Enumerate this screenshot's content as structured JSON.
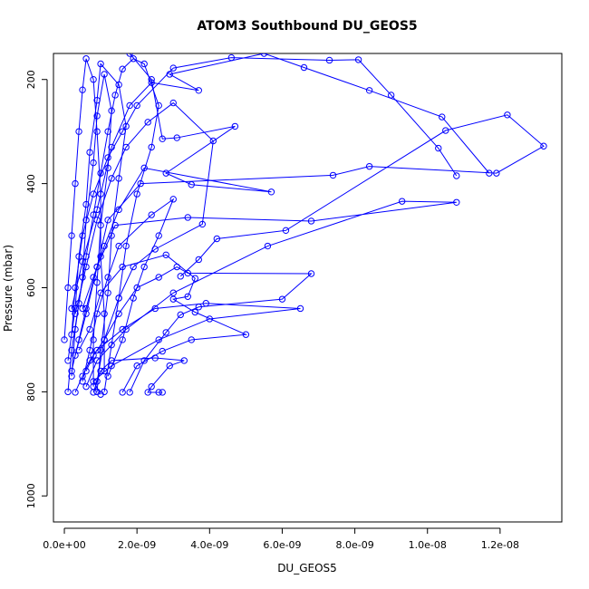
{
  "chart_data": {
    "type": "line",
    "title": "ATOM3 Southbound DU_GEOS5",
    "xlabel": "DU_GEOS5",
    "ylabel": "Pressure (mbar)",
    "xlim": [
      -3e-10,
      1.37e-08
    ],
    "ylim": [
      1050,
      150
    ],
    "y_inverted": true,
    "x_ticks": [
      {
        "value": 0,
        "label": "0.0e+00"
      },
      {
        "value": 2e-09,
        "label": "2.0e-09"
      },
      {
        "value": 4e-09,
        "label": "4.0e-09"
      },
      {
        "value": 6e-09,
        "label": "6.0e-09"
      },
      {
        "value": 8e-09,
        "label": "8.0e-09"
      },
      {
        "value": 1e-08,
        "label": "1.0e-08"
      },
      {
        "value": 1.2e-08,
        "label": "1.2e-08"
      }
    ],
    "y_ticks": [
      {
        "value": 200,
        "label": "200"
      },
      {
        "value": 400,
        "label": "400"
      },
      {
        "value": 600,
        "label": "600"
      },
      {
        "value": 800,
        "label": "800"
      },
      {
        "value": 1000,
        "label": "1000"
      }
    ],
    "grid": false,
    "legend": "none",
    "series_color": "#0000ff",
    "series": [
      {
        "points": [
          [
            3e-10,
            801
          ],
          [
            5e-10,
            770
          ],
          [
            7e-10,
            740
          ],
          [
            9e-10,
            720
          ],
          [
            1.6e-09,
            680
          ],
          [
            2.5e-09,
            640
          ],
          [
            3.9e-09,
            630
          ],
          [
            6.5e-09,
            640
          ],
          [
            4e-09,
            660
          ],
          [
            2.6e-09,
            700
          ],
          [
            1.3e-09,
            750
          ],
          [
            8e-10,
            780
          ],
          [
            1e-09,
            805
          ]
        ]
      },
      {
        "points": [
          [
            2e-10,
            760
          ],
          [
            4e-10,
            700
          ],
          [
            6e-10,
            640
          ],
          [
            9e-10,
            560
          ],
          [
            1.4e-09,
            480
          ],
          [
            3.4e-09,
            465
          ],
          [
            6.8e-09,
            472
          ],
          [
            1.08e-08,
            436
          ],
          [
            9.3e-09,
            434
          ],
          [
            5.6e-09,
            520
          ],
          [
            3e-09,
            610
          ],
          [
            1.7e-09,
            680
          ],
          [
            9e-10,
            740
          ],
          [
            6e-10,
            790
          ]
        ]
      },
      {
        "points": [
          [
            3e-10,
            730
          ],
          [
            6e-10,
            650
          ],
          [
            9e-10,
            560
          ],
          [
            1.2e-09,
            470
          ],
          [
            2.1e-09,
            400
          ],
          [
            7.4e-09,
            384
          ],
          [
            8.4e-09,
            367
          ],
          [
            1.19e-08,
            380
          ],
          [
            1.32e-08,
            328
          ],
          [
            1.22e-08,
            268
          ],
          [
            1.05e-08,
            298
          ],
          [
            6.1e-09,
            490
          ],
          [
            4.2e-09,
            506
          ],
          [
            3.7e-09,
            546
          ],
          [
            3.2e-09,
            578
          ]
        ]
      },
      {
        "points": [
          [
            5e-10,
            640
          ],
          [
            8e-10,
            580
          ],
          [
            1.1e-09,
            520
          ],
          [
            1.5e-09,
            450
          ],
          [
            2.2e-09,
            370
          ],
          [
            5.7e-09,
            416
          ],
          [
            3.5e-09,
            402
          ],
          [
            2.8e-09,
            380
          ],
          [
            4.7e-09,
            290
          ],
          [
            3.1e-09,
            312
          ],
          [
            2.7e-09,
            314
          ],
          [
            2.4e-09,
            200
          ],
          [
            1.8e-09,
            150
          ]
        ]
      },
      {
        "points": [
          [
            2e-10,
            640
          ],
          [
            5e-10,
            550
          ],
          [
            9e-10,
            450
          ],
          [
            1.3e-09,
            330
          ],
          [
            1.8e-09,
            250
          ],
          [
            2.4e-09,
            206
          ],
          [
            3.7e-09,
            221
          ],
          [
            2.9e-09,
            190
          ],
          [
            5.5e-09,
            150
          ],
          [
            6.6e-09,
            177
          ],
          [
            8.4e-09,
            221
          ],
          [
            1.04e-08,
            272
          ],
          [
            1.17e-08,
            380
          ]
        ]
      },
      {
        "points": [
          [
            4e-10,
            720
          ],
          [
            7e-10,
            680
          ],
          [
            1e-09,
            610
          ],
          [
            1.6e-09,
            560
          ],
          [
            2.8e-09,
            537
          ],
          [
            3.6e-09,
            582
          ],
          [
            3.4e-09,
            617
          ],
          [
            3e-09,
            622
          ],
          [
            3.6e-09,
            647
          ],
          [
            5e-09,
            690
          ],
          [
            3.5e-09,
            700
          ],
          [
            2.7e-09,
            722
          ],
          [
            2e-09,
            750
          ],
          [
            1.6e-09,
            801
          ]
        ]
      },
      {
        "points": [
          [
            6e-10,
            760
          ],
          [
            8e-10,
            730
          ],
          [
            1.1e-09,
            700
          ],
          [
            1.5e-09,
            650
          ],
          [
            2e-09,
            600
          ],
          [
            2.6e-09,
            580
          ],
          [
            3.1e-09,
            560
          ],
          [
            3.4e-09,
            572
          ],
          [
            6.8e-09,
            573
          ],
          [
            6e-09,
            622
          ],
          [
            3.7e-09,
            637
          ],
          [
            3.2e-09,
            652
          ],
          [
            2.8e-09,
            686
          ],
          [
            2.2e-09,
            740
          ],
          [
            1.8e-09,
            801
          ]
        ]
      },
      {
        "points": [
          [
            2e-10,
            690
          ],
          [
            3e-10,
            600
          ],
          [
            5e-10,
            500
          ],
          [
            8e-10,
            420
          ],
          [
            1.2e-09,
            350
          ],
          [
            1.6e-09,
            300
          ],
          [
            2e-09,
            250
          ],
          [
            3e-09,
            178
          ],
          [
            4.6e-09,
            158
          ],
          [
            7.3e-09,
            163
          ],
          [
            8.1e-09,
            162
          ],
          [
            9e-09,
            230
          ],
          [
            1.03e-08,
            332
          ],
          [
            1.08e-08,
            385
          ]
        ]
      },
      {
        "points": [
          [
            3e-10,
            650
          ],
          [
            6e-10,
            560
          ],
          [
            9e-10,
            470
          ],
          [
            1.3e-09,
            390
          ],
          [
            1.7e-09,
            330
          ],
          [
            2.3e-09,
            282
          ],
          [
            3e-09,
            245
          ],
          [
            4.1e-09,
            318
          ],
          [
            3.8e-09,
            478
          ],
          [
            2.5e-09,
            526
          ],
          [
            1.9e-09,
            560
          ],
          [
            1.5e-09,
            620
          ],
          [
            1.1e-09,
            700
          ],
          [
            9e-10,
            780
          ]
        ]
      },
      {
        "points": [
          [
            1e-10,
            800
          ],
          [
            2e-10,
            720
          ],
          [
            4e-10,
            630
          ],
          [
            6e-10,
            540
          ],
          [
            8e-10,
            460
          ],
          [
            1e-09,
            380
          ],
          [
            1.2e-09,
            300
          ],
          [
            1.4e-09,
            230
          ],
          [
            1.6e-09,
            180
          ],
          [
            1.9e-09,
            160
          ],
          [
            2.2e-09,
            170
          ],
          [
            2.6e-09,
            250
          ],
          [
            2.4e-09,
            330
          ],
          [
            2e-09,
            420
          ],
          [
            1.7e-09,
            520
          ],
          [
            1.5e-09,
            620
          ],
          [
            1.3e-09,
            710
          ],
          [
            1.1e-09,
            800
          ]
        ]
      },
      {
        "points": [
          [
            0.0,
            700
          ],
          [
            1e-10,
            600
          ],
          [
            2e-10,
            500
          ],
          [
            3e-10,
            400
          ],
          [
            4e-10,
            300
          ],
          [
            5e-10,
            220
          ],
          [
            6e-10,
            160
          ],
          [
            8e-10,
            200
          ],
          [
            9e-10,
            300
          ],
          [
            1e-09,
            420
          ],
          [
            1e-09,
            540
          ],
          [
            1.1e-09,
            650
          ],
          [
            1.1e-09,
            760
          ]
        ]
      },
      {
        "points": [
          [
            2e-10,
            770
          ],
          [
            3e-10,
            680
          ],
          [
            5e-10,
            580
          ],
          [
            6e-10,
            470
          ],
          [
            8e-10,
            360
          ],
          [
            9e-10,
            270
          ],
          [
            1.1e-09,
            190
          ],
          [
            1.3e-09,
            260
          ],
          [
            1.2e-09,
            370
          ],
          [
            1e-09,
            480
          ],
          [
            9e-10,
            590
          ],
          [
            8e-10,
            700
          ],
          [
            8e-10,
            790
          ]
        ]
      },
      {
        "points": [
          [
            1e-10,
            740
          ],
          [
            3e-10,
            640
          ],
          [
            4e-10,
            540
          ],
          [
            6e-10,
            440
          ],
          [
            7e-10,
            340
          ],
          [
            9e-10,
            240
          ],
          [
            1e-09,
            170
          ],
          [
            1.5e-09,
            210
          ],
          [
            1.7e-09,
            290
          ],
          [
            1.5e-09,
            390
          ],
          [
            1.3e-09,
            500
          ],
          [
            1.2e-09,
            610
          ],
          [
            1e-09,
            720
          ],
          [
            9e-10,
            800
          ]
        ]
      },
      {
        "points": [
          [
            5e-10,
            780
          ],
          [
            7e-10,
            720
          ],
          [
            9e-10,
            650
          ],
          [
            1.2e-09,
            580
          ],
          [
            1.5e-09,
            520
          ],
          [
            2.4e-09,
            460
          ],
          [
            3e-09,
            430
          ],
          [
            2.6e-09,
            500
          ],
          [
            2.2e-09,
            560
          ],
          [
            1.9e-09,
            620
          ],
          [
            1.6e-09,
            700
          ],
          [
            1.2e-09,
            770
          ]
        ]
      },
      {
        "points": [
          [
            8e-10,
            801
          ],
          [
            1e-09,
            760
          ],
          [
            1.3e-09,
            740
          ],
          [
            2.5e-09,
            735
          ],
          [
            3.3e-09,
            740
          ],
          [
            2.9e-09,
            750
          ],
          [
            2.4e-09,
            790
          ],
          [
            2.3e-09,
            801
          ],
          [
            2.6e-09,
            801
          ],
          [
            2.7e-09,
            801
          ]
        ]
      }
    ]
  }
}
